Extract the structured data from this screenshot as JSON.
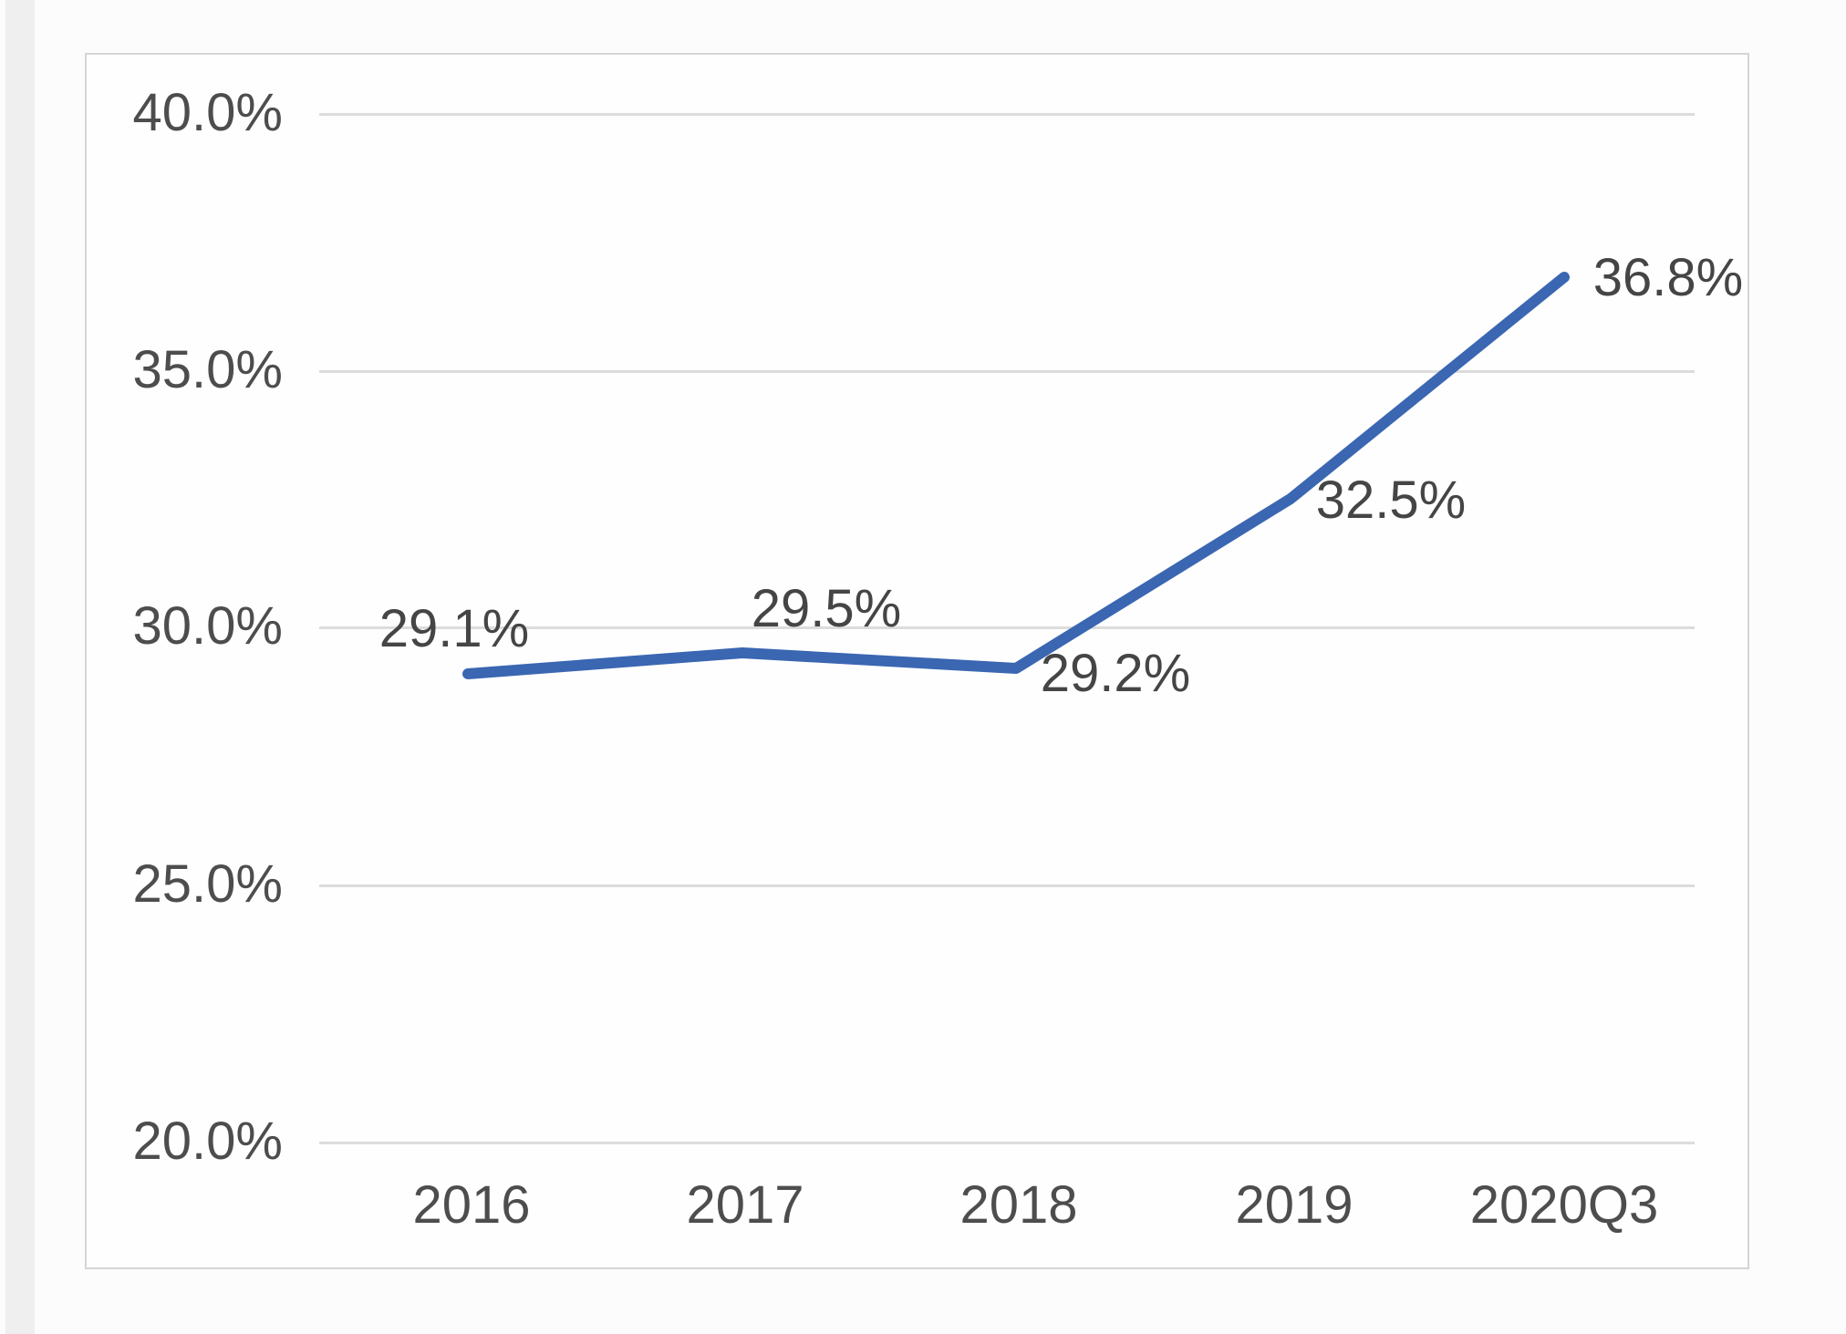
{
  "chart_data": {
    "type": "line",
    "categories": [
      "2016",
      "2017",
      "2018",
      "2019",
      "2020Q3"
    ],
    "values": [
      29.1,
      29.5,
      29.2,
      32.5,
      36.8
    ],
    "data_labels": [
      "29.1%",
      "29.5%",
      "29.2%",
      "32.5%",
      "36.8%"
    ],
    "y_ticks": [
      "40.0%",
      "35.0%",
      "30.0%",
      "25.0%",
      "20.0%"
    ],
    "title": "",
    "xlabel": "",
    "ylabel": "",
    "ylim": [
      20,
      40
    ],
    "y_tick_step": 5,
    "grid": true,
    "legend": "none",
    "line_color": "#3a66b2",
    "gridline_color": "#dcdcdc",
    "tick_text_color": "#4d4d4d"
  }
}
